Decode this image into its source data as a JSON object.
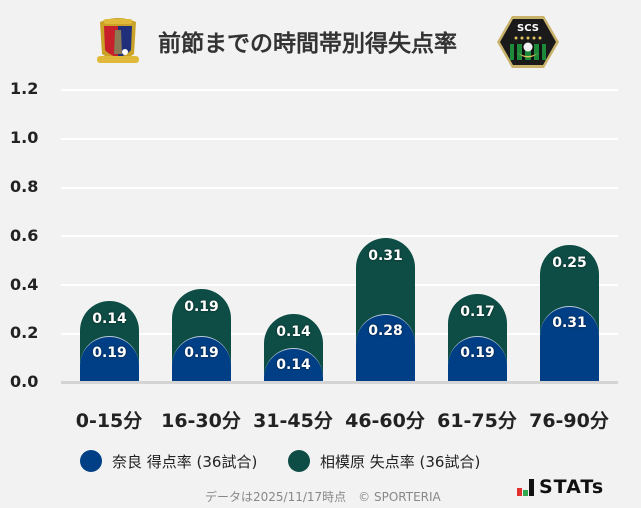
{
  "header": {
    "title": "前節までの時間帯別得失点率",
    "left_logo": "nara-club-crest-icon",
    "right_logo": "scs-sagamihara-crest-icon",
    "right_logo_text": "SCS"
  },
  "chart_data": {
    "type": "bar",
    "stacked": true,
    "title": "前節までの時間帯別得失点率",
    "categories": [
      "0-15分",
      "16-30分",
      "31-45分",
      "46-60分",
      "61-75分",
      "76-90分"
    ],
    "series": [
      {
        "name": "奈良 得点率 (36試合)",
        "color": "#003f85",
        "values": [
          0.19,
          0.19,
          0.14,
          0.28,
          0.19,
          0.31
        ]
      },
      {
        "name": "相模原 失点率 (36試合)",
        "color": "#0e4d45",
        "values": [
          0.14,
          0.19,
          0.14,
          0.31,
          0.17,
          0.25
        ]
      }
    ],
    "xlabel": "",
    "ylabel": "",
    "ylim": [
      0,
      1.2
    ],
    "yticks": [
      "1.2",
      "1.0",
      "0.8",
      "0.6",
      "0.4",
      "0.2",
      "0.0"
    ],
    "grid": true,
    "legend_position": "bottom"
  },
  "legend": [
    {
      "label": "奈良 得点率 (36試合)",
      "color": "#003f85"
    },
    {
      "label": "相模原 失点率 (36試合)",
      "color": "#0e4d45"
    }
  ],
  "footer": {
    "note": "データは2025/11/17時点　© SPORTERIA",
    "brand": "STATs"
  }
}
